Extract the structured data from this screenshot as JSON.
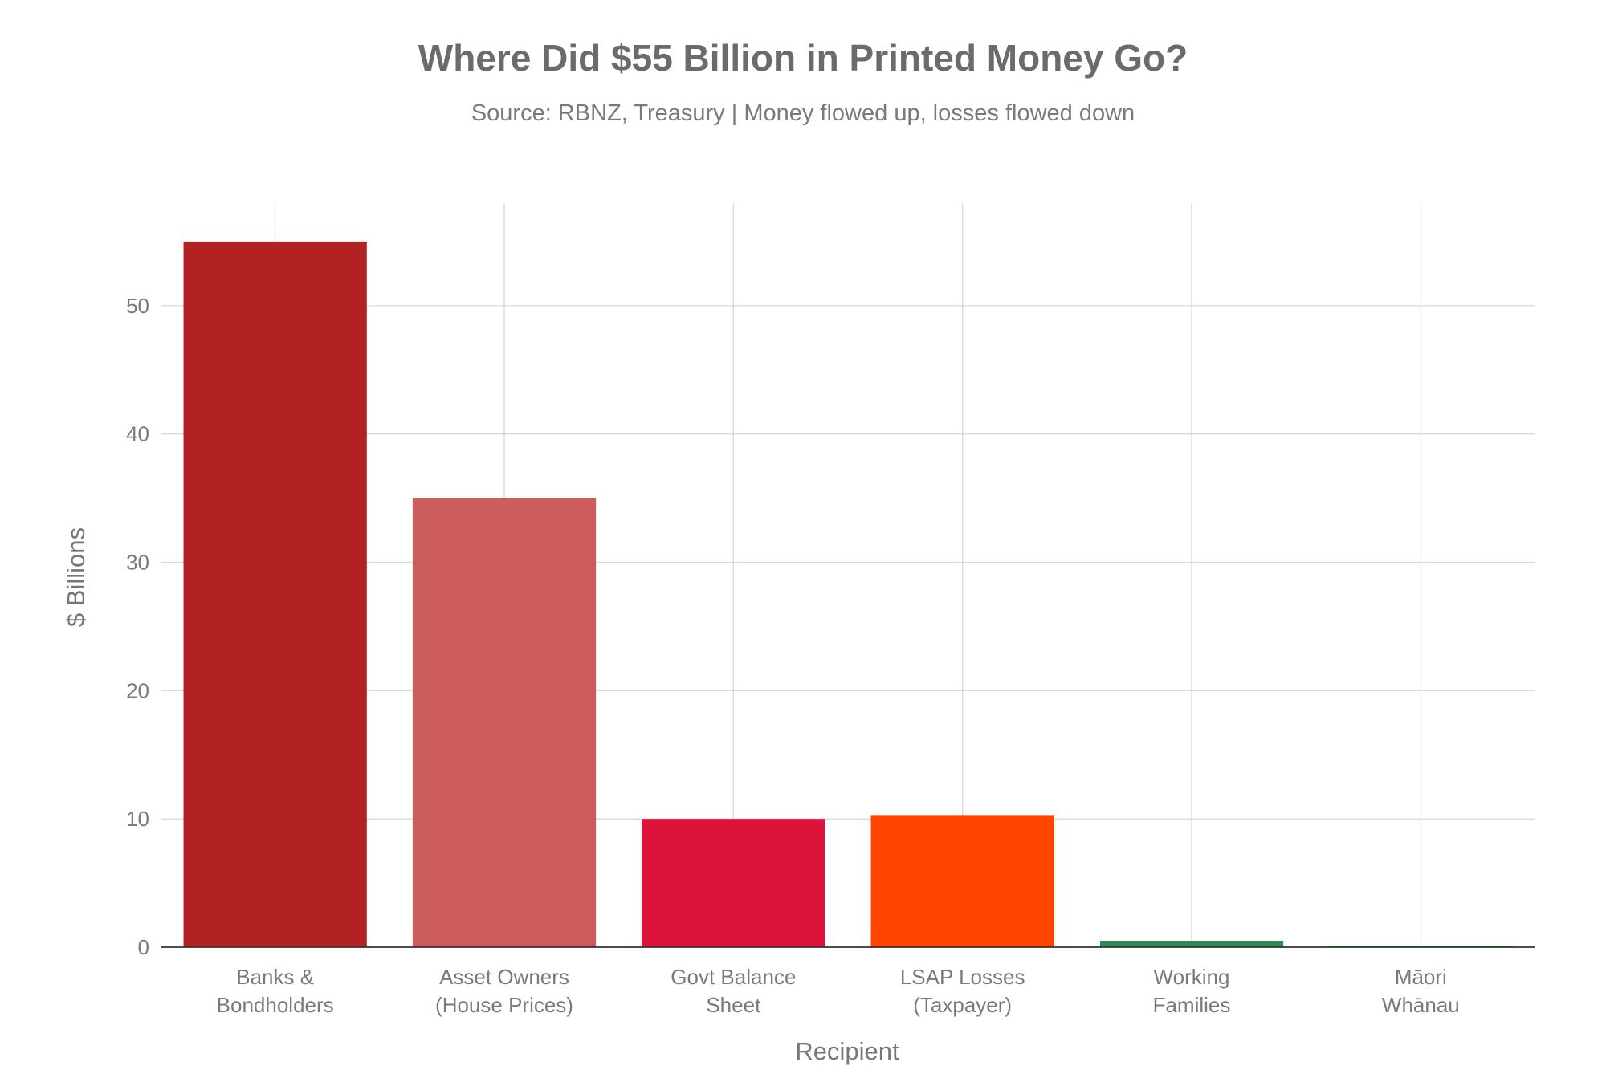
{
  "chart_data": {
    "type": "bar",
    "title": "Where Did $55 Billion in Printed Money Go?",
    "subtitle": "Source: RBNZ, Treasury | Money flowed up, losses flowed down",
    "xlabel": "Recipient",
    "ylabel": "$ Billions",
    "categories": [
      [
        "Banks &",
        "Bondholders"
      ],
      [
        "Asset Owners",
        "(House Prices)"
      ],
      [
        "Govt Balance",
        "Sheet"
      ],
      [
        "LSAP Losses",
        "(Taxpayer)"
      ],
      [
        "Working",
        "Families"
      ],
      [
        "Māori",
        "Whānau"
      ]
    ],
    "values": [
      55,
      35,
      10,
      10.3,
      0.5,
      0.1
    ],
    "colors": [
      "#b22222",
      "#cd5c5c",
      "#dc143c",
      "#ff4500",
      "#2e8b57",
      "#228b22"
    ],
    "ylim": [
      0,
      58
    ],
    "yticks": [
      0,
      10,
      20,
      30,
      40,
      50
    ],
    "grid": true,
    "legend": "none"
  }
}
